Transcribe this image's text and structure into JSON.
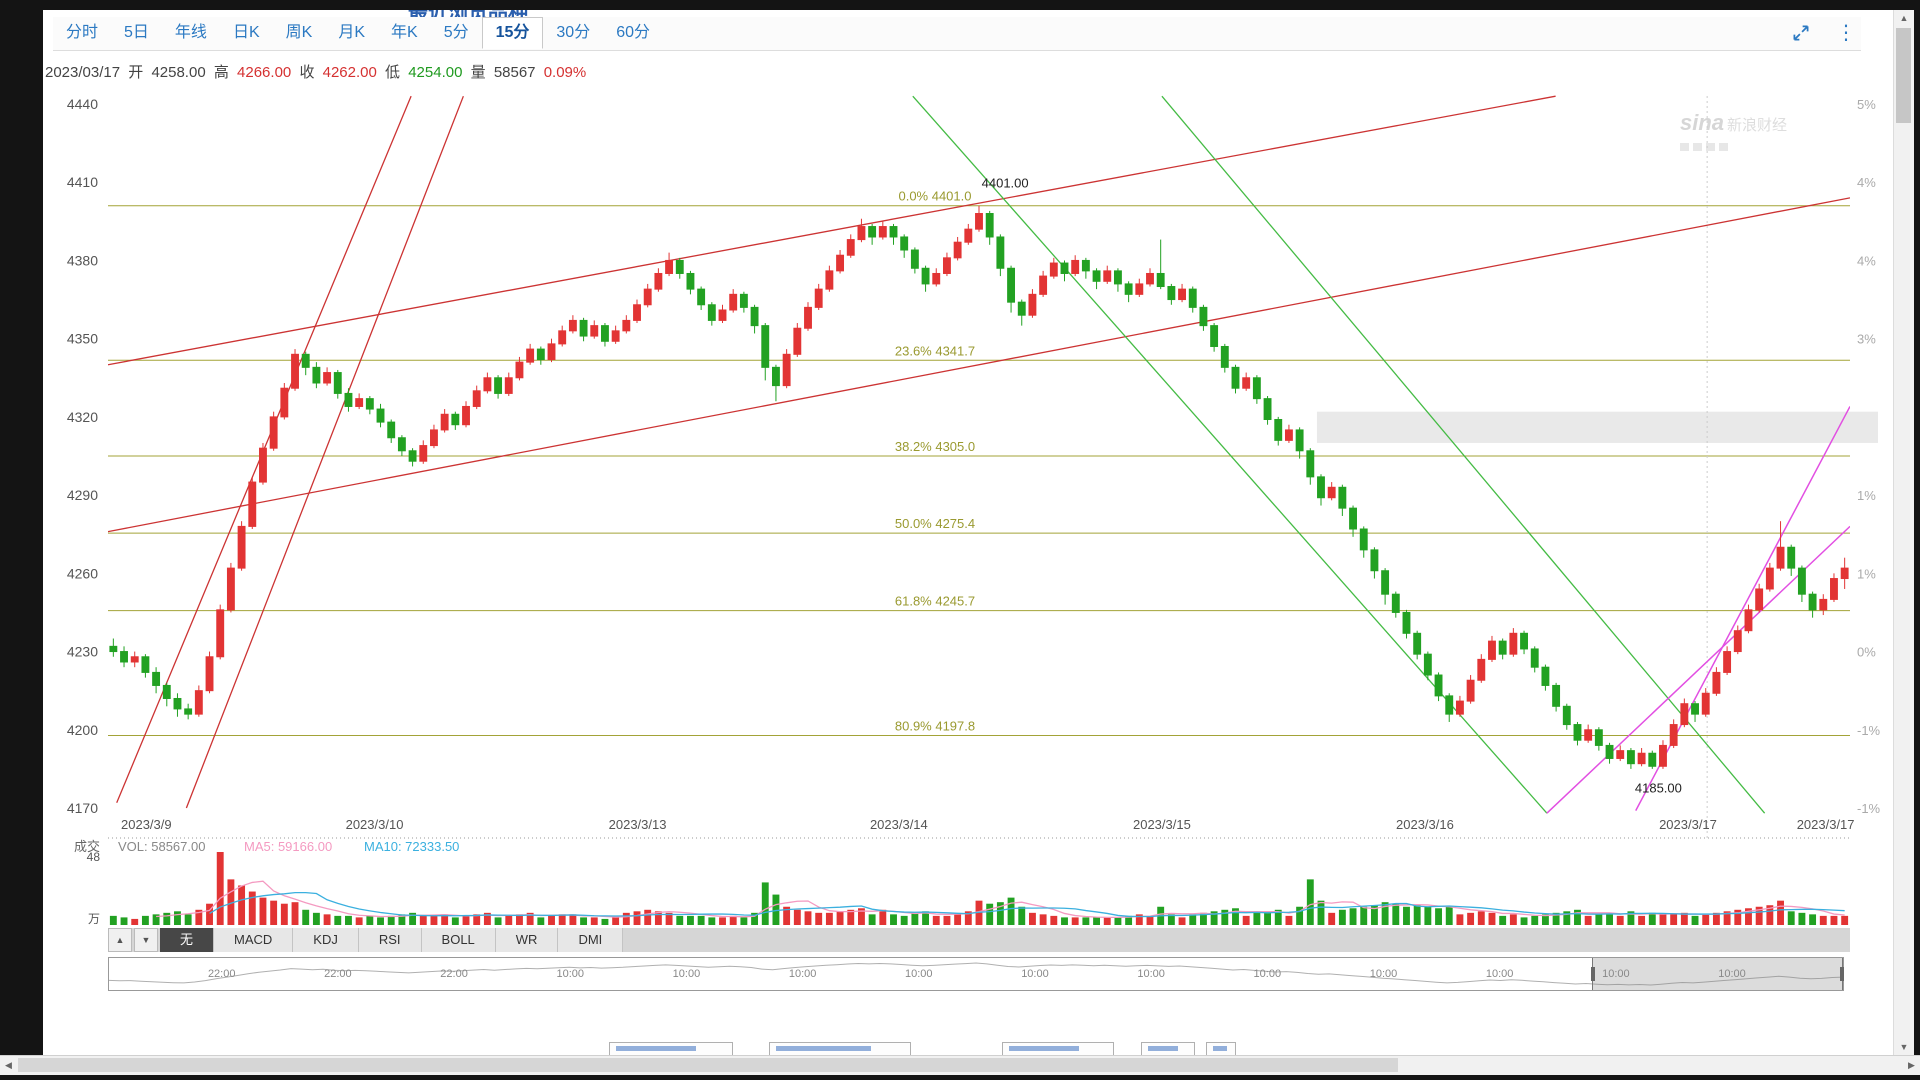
{
  "page": {
    "top_partial_title": "最近浏览品种",
    "watermark": {
      "logo": "sina",
      "name": "新浪财经"
    }
  },
  "toolbar": {
    "tabs": [
      "分时",
      "5日",
      "年线",
      "日K",
      "周K",
      "月K",
      "年K",
      "5分",
      "15分",
      "30分",
      "60分"
    ],
    "selected_tab": "15分",
    "collapse_icon": "collapse",
    "more_icon": "more"
  },
  "info_bar": {
    "date": "2023/03/17",
    "open_label": "开",
    "open": "4258.00",
    "high_label": "高",
    "high": "4266.00",
    "close_label": "收",
    "close": "4262.00",
    "low_label": "低",
    "low": "4254.00",
    "vol_label": "量",
    "vol": "58567",
    "change": "0.09%"
  },
  "chart_data": {
    "type": "candlestick",
    "interval": "15分",
    "ylim": [
      4170,
      4440
    ],
    "y_ticks": [
      4440,
      4410,
      4380,
      4350,
      4320,
      4290,
      4260,
      4230,
      4200,
      4170
    ],
    "right_axis_labels": [
      "5%",
      "4%",
      "4%",
      "3%",
      "2%",
      "1%",
      "1%",
      "0%",
      "-1%",
      "-1%"
    ],
    "x_labels": [
      {
        "label": "2023/3/9",
        "fx": 0.022
      },
      {
        "label": "2023/3/10",
        "fx": 0.153
      },
      {
        "label": "2023/3/13",
        "fx": 0.304
      },
      {
        "label": "2023/3/14",
        "fx": 0.454
      },
      {
        "label": "2023/3/15",
        "fx": 0.605
      },
      {
        "label": "2023/3/16",
        "fx": 0.756
      },
      {
        "label": "2023/3/17",
        "fx": 0.907
      },
      {
        "label": "2023/3/17",
        "fx": 0.986
      }
    ],
    "fib_levels": [
      {
        "label": "0.0% 4401.0",
        "price": 4401.0
      },
      {
        "label": "23.6% 4341.7",
        "price": 4341.7
      },
      {
        "label": "38.2% 4305.0",
        "price": 4305.0
      },
      {
        "label": "50.0% 4275.4",
        "price": 4275.4
      },
      {
        "label": "61.8% 4245.7",
        "price": 4245.7
      },
      {
        "label": "80.9% 4197.8",
        "price": 4197.8
      }
    ],
    "annotations": [
      {
        "text": "4401.00",
        "fx": 0.515,
        "price": 4408
      },
      {
        "text": "4185.00",
        "fx": 0.89,
        "price": 4176
      }
    ],
    "trend_lines": [
      {
        "color": "#cc3333",
        "w": 1.3,
        "fx1": 0.005,
        "p1": 4172,
        "fx2": 0.174,
        "p2": 4443
      },
      {
        "color": "#cc3333",
        "w": 1.3,
        "fx1": 0.045,
        "p1": 4170,
        "fx2": 0.204,
        "p2": 4443
      },
      {
        "color": "#cc3333",
        "w": 1.3,
        "fx1": 0.0,
        "p1": 4340,
        "fx2": 0.831,
        "p2": 4443
      },
      {
        "color": "#cc3333",
        "w": 1.3,
        "fx1": 0.0,
        "p1": 4276,
        "fx2": 1.0,
        "p2": 4404
      },
      {
        "color": "#44bb44",
        "w": 1.3,
        "fx1": 0.462,
        "p1": 4443,
        "fx2": 0.826,
        "p2": 4168
      },
      {
        "color": "#44bb44",
        "w": 1.3,
        "fx1": 0.605,
        "p1": 4443,
        "fx2": 0.951,
        "p2": 4168
      },
      {
        "color": "#e24fe2",
        "w": 1.5,
        "fx1": 0.826,
        "p1": 4168,
        "fx2": 1.0,
        "p2": 4278
      },
      {
        "color": "#e24fe2",
        "w": 1.5,
        "fx1": 0.877,
        "p1": 4169,
        "fx2": 1.0,
        "p2": 4324
      }
    ],
    "highlight_band": {
      "fx1": 0.694,
      "fx2": 1.0,
      "p1": 4322,
      "p2": 4310
    },
    "separator_fx": 0.918,
    "colors": {
      "up": "#e23434",
      "down": "#22a122",
      "fib": "#a3a337",
      "ma5": "#f49ac1",
      "ma10": "#3bb0df"
    },
    "volume": {
      "title": "成交",
      "vol_text": "VOL: 58567.00",
      "ma5_text": "MA5: 59166.00",
      "ma10_text": "MA10: 72333.50",
      "scale_max": 48,
      "max_label": "48",
      "unit": "万"
    },
    "candles": [
      [
        4232,
        4235,
        4228,
        4230,
        6
      ],
      [
        4230,
        4232,
        4224,
        4226,
        5
      ],
      [
        4226,
        4230,
        4224,
        4228,
        4
      ],
      [
        4228,
        4229,
        4220,
        4222,
        6
      ],
      [
        4222,
        4224,
        4214,
        4217,
        7
      ],
      [
        4217,
        4218,
        4209,
        4212,
        8
      ],
      [
        4212,
        4214,
        4205,
        4208,
        9
      ],
      [
        4208,
        4210,
        4204,
        4206,
        7
      ],
      [
        4206,
        4217,
        4205,
        4215,
        10
      ],
      [
        4215,
        4230,
        4214,
        4228,
        14
      ],
      [
        4228,
        4248,
        4227,
        4246,
        48
      ],
      [
        4246,
        4264,
        4245,
        4262,
        30
      ],
      [
        4262,
        4280,
        4261,
        4278,
        26
      ],
      [
        4278,
        4297,
        4277,
        4295,
        22
      ],
      [
        4295,
        4310,
        4294,
        4308,
        18
      ],
      [
        4308,
        4322,
        4307,
        4320,
        16
      ],
      [
        4320,
        4333,
        4319,
        4331,
        14
      ],
      [
        4331,
        4346,
        4330,
        4344,
        15
      ],
      [
        4344,
        4345,
        4336,
        4339,
        10
      ],
      [
        4339,
        4341,
        4331,
        4333,
        8
      ],
      [
        4333,
        4339,
        4332,
        4337,
        7
      ],
      [
        4337,
        4338,
        4327,
        4329,
        6
      ],
      [
        4329,
        4331,
        4322,
        4324,
        6
      ],
      [
        4324,
        4329,
        4323,
        4327,
        5
      ],
      [
        4327,
        4328,
        4321,
        4323,
        6
      ],
      [
        4323,
        4325,
        4316,
        4318,
        5
      ],
      [
        4318,
        4319,
        4310,
        4312,
        6
      ],
      [
        4312,
        4313,
        4305,
        4307,
        7
      ],
      [
        4307,
        4308,
        4301,
        4303,
        8
      ],
      [
        4303,
        4311,
        4302,
        4309,
        6
      ],
      [
        4309,
        4317,
        4308,
        4315,
        6
      ],
      [
        4315,
        4323,
        4314,
        4321,
        7
      ],
      [
        4321,
        4322,
        4315,
        4317,
        5
      ],
      [
        4317,
        4326,
        4316,
        4324,
        6
      ],
      [
        4324,
        4332,
        4323,
        4330,
        7
      ],
      [
        4330,
        4337,
        4329,
        4335,
        8
      ],
      [
        4335,
        4336,
        4327,
        4329,
        5
      ],
      [
        4329,
        4337,
        4328,
        4335,
        6
      ],
      [
        4335,
        4343,
        4334,
        4341,
        7
      ],
      [
        4341,
        4348,
        4340,
        4346,
        8
      ],
      [
        4346,
        4347,
        4340,
        4342,
        5
      ],
      [
        4342,
        4350,
        4341,
        4348,
        6
      ],
      [
        4348,
        4355,
        4347,
        4353,
        7
      ],
      [
        4353,
        4359,
        4352,
        4357,
        7
      ],
      [
        4357,
        4358,
        4349,
        4351,
        5
      ],
      [
        4351,
        4357,
        4350,
        4355,
        5
      ],
      [
        4355,
        4356,
        4347,
        4349,
        4
      ],
      [
        4349,
        4355,
        4348,
        4353,
        5
      ],
      [
        4353,
        4359,
        4352,
        4357,
        8
      ],
      [
        4357,
        4365,
        4356,
        4363,
        9
      ],
      [
        4363,
        4371,
        4362,
        4369,
        10
      ],
      [
        4369,
        4377,
        4368,
        4375,
        9
      ],
      [
        4375,
        4383,
        4374,
        4380,
        8
      ],
      [
        4380,
        4381,
        4373,
        4375,
        6
      ],
      [
        4375,
        4376,
        4367,
        4369,
        6
      ],
      [
        4369,
        4370,
        4361,
        4363,
        6
      ],
      [
        4363,
        4364,
        4355,
        4357,
        5
      ],
      [
        4357,
        4363,
        4356,
        4361,
        5
      ],
      [
        4361,
        4369,
        4360,
        4367,
        6
      ],
      [
        4367,
        4368,
        4360,
        4362,
        5
      ],
      [
        4362,
        4363,
        4352,
        4355,
        8
      ],
      [
        4355,
        4356,
        4334,
        4339,
        28
      ],
      [
        4339,
        4340,
        4326,
        4332,
        20
      ],
      [
        4332,
        4346,
        4331,
        4344,
        12
      ],
      [
        4344,
        4356,
        4343,
        4354,
        10
      ],
      [
        4354,
        4364,
        4353,
        4362,
        9
      ],
      [
        4362,
        4371,
        4361,
        4369,
        8
      ],
      [
        4369,
        4378,
        4368,
        4376,
        8
      ],
      [
        4376,
        4384,
        4375,
        4382,
        9
      ],
      [
        4382,
        4390,
        4381,
        4388,
        10
      ],
      [
        4388,
        4396,
        4387,
        4393,
        11
      ],
      [
        4393,
        4394,
        4386,
        4389,
        7
      ],
      [
        4389,
        4395,
        4388,
        4393,
        10
      ],
      [
        4393,
        4394,
        4386,
        4389,
        7
      ],
      [
        4389,
        4390,
        4381,
        4384,
        6
      ],
      [
        4384,
        4385,
        4375,
        4377,
        8
      ],
      [
        4377,
        4378,
        4368,
        4371,
        9
      ],
      [
        4371,
        4377,
        4370,
        4375,
        6
      ],
      [
        4375,
        4383,
        4374,
        4381,
        6
      ],
      [
        4381,
        4389,
        4380,
        4387,
        7
      ],
      [
        4387,
        4394,
        4386,
        4392,
        9
      ],
      [
        4392,
        4401,
        4391,
        4398,
        16
      ],
      [
        4398,
        4399,
        4386,
        4389,
        14
      ],
      [
        4389,
        4390,
        4374,
        4377,
        15
      ],
      [
        4377,
        4378,
        4360,
        4364,
        18
      ],
      [
        4364,
        4365,
        4355,
        4359,
        12
      ],
      [
        4359,
        4369,
        4358,
        4367,
        8
      ],
      [
        4367,
        4376,
        4366,
        4374,
        7
      ],
      [
        4374,
        4381,
        4373,
        4379,
        6
      ],
      [
        4379,
        4380,
        4372,
        4375,
        5
      ],
      [
        4375,
        4382,
        4374,
        4380,
        5
      ],
      [
        4380,
        4381,
        4373,
        4376,
        5
      ],
      [
        4376,
        4377,
        4369,
        4372,
        5
      ],
      [
        4372,
        4378,
        4371,
        4376,
        5
      ],
      [
        4376,
        4377,
        4368,
        4371,
        5
      ],
      [
        4371,
        4372,
        4364,
        4367,
        6
      ],
      [
        4367,
        4373,
        4366,
        4371,
        7
      ],
      [
        4371,
        4377,
        4370,
        4375,
        6
      ],
      [
        4375,
        4388,
        4369,
        4370,
        12
      ],
      [
        4370,
        4371,
        4363,
        4365,
        7
      ],
      [
        4365,
        4371,
        4364,
        4369,
        5
      ],
      [
        4369,
        4370,
        4360,
        4362,
        7
      ],
      [
        4362,
        4363,
        4353,
        4355,
        8
      ],
      [
        4355,
        4356,
        4345,
        4347,
        9
      ],
      [
        4347,
        4348,
        4337,
        4339,
        10
      ],
      [
        4339,
        4340,
        4329,
        4331,
        11
      ],
      [
        4331,
        4337,
        4330,
        4335,
        6
      ],
      [
        4335,
        4336,
        4325,
        4327,
        8
      ],
      [
        4327,
        4328,
        4317,
        4319,
        9
      ],
      [
        4319,
        4320,
        4309,
        4311,
        10
      ],
      [
        4311,
        4317,
        4310,
        4315,
        6
      ],
      [
        4315,
        4316,
        4304,
        4307,
        12
      ],
      [
        4307,
        4308,
        4294,
        4297,
        30
      ],
      [
        4297,
        4298,
        4286,
        4289,
        16
      ],
      [
        4289,
        4295,
        4288,
        4293,
        8
      ],
      [
        4293,
        4294,
        4282,
        4285,
        10
      ],
      [
        4285,
        4286,
        4274,
        4277,
        11
      ],
      [
        4277,
        4278,
        4266,
        4269,
        12
      ],
      [
        4269,
        4270,
        4258,
        4261,
        13
      ],
      [
        4261,
        4262,
        4248,
        4252,
        15
      ],
      [
        4252,
        4253,
        4243,
        4245,
        14
      ],
      [
        4245,
        4246,
        4235,
        4237,
        12
      ],
      [
        4237,
        4238,
        4227,
        4229,
        13
      ],
      [
        4229,
        4230,
        4219,
        4221,
        12
      ],
      [
        4221,
        4222,
        4211,
        4213,
        11
      ],
      [
        4213,
        4214,
        4203,
        4206,
        12
      ],
      [
        4206,
        4213,
        4205,
        4211,
        7
      ],
      [
        4211,
        4221,
        4210,
        4219,
        8
      ],
      [
        4219,
        4229,
        4218,
        4227,
        9
      ],
      [
        4227,
        4236,
        4226,
        4234,
        8
      ],
      [
        4234,
        4235,
        4227,
        4229,
        6
      ],
      [
        4229,
        4239,
        4228,
        4237,
        7
      ],
      [
        4237,
        4238,
        4229,
        4231,
        5
      ],
      [
        4231,
        4232,
        4222,
        4224,
        6
      ],
      [
        4224,
        4225,
        4215,
        4217,
        7
      ],
      [
        4217,
        4218,
        4207,
        4209,
        8
      ],
      [
        4209,
        4210,
        4200,
        4202,
        9
      ],
      [
        4202,
        4203,
        4194,
        4196,
        10
      ],
      [
        4196,
        4202,
        4195,
        4200,
        6
      ],
      [
        4200,
        4201,
        4192,
        4194,
        7
      ],
      [
        4194,
        4195,
        4187,
        4189,
        8
      ],
      [
        4189,
        4194,
        4188,
        4192,
        6
      ],
      [
        4192,
        4193,
        4185,
        4187,
        9
      ],
      [
        4187,
        4193,
        4186,
        4191,
        6
      ],
      [
        4191,
        4192,
        4185,
        4186,
        8
      ],
      [
        4186,
        4196,
        4185,
        4194,
        7
      ],
      [
        4194,
        4204,
        4193,
        4202,
        7
      ],
      [
        4202,
        4212,
        4201,
        4210,
        8
      ],
      [
        4210,
        4211,
        4203,
        4206,
        6
      ],
      [
        4206,
        4216,
        4205,
        4214,
        7
      ],
      [
        4214,
        4224,
        4213,
        4222,
        8
      ],
      [
        4222,
        4232,
        4221,
        4230,
        9
      ],
      [
        4230,
        4240,
        4229,
        4238,
        10
      ],
      [
        4238,
        4248,
        4237,
        4246,
        11
      ],
      [
        4246,
        4256,
        4245,
        4254,
        12
      ],
      [
        4254,
        4264,
        4253,
        4262,
        13
      ],
      [
        4262,
        4280,
        4261,
        4270,
        16
      ],
      [
        4270,
        4271,
        4259,
        4262,
        9
      ],
      [
        4262,
        4263,
        4249,
        4252,
        8
      ],
      [
        4252,
        4253,
        4243,
        4246,
        7
      ],
      [
        4246,
        4252,
        4244,
        4250,
        6
      ],
      [
        4250,
        4260,
        4249,
        4258,
        6
      ],
      [
        4258,
        4266,
        4254,
        4262,
        6
      ]
    ]
  },
  "indicator_bar": {
    "up_arrow": "▲",
    "down_arrow": "▼",
    "tabs": [
      "无",
      "MACD",
      "KDJ",
      "RSI",
      "BOLL",
      "WR",
      "DMI"
    ],
    "selected": "无"
  },
  "navigator": {
    "times": [
      "22:00",
      "22:00",
      "22:00",
      "10:00",
      "10:00",
      "10:00",
      "10:00",
      "10:00",
      "10:00",
      "10:00",
      "10:00",
      "10:00",
      "10:00",
      "10:00"
    ],
    "time_fx": [
      0.065,
      0.132,
      0.199,
      0.266,
      0.333,
      0.4,
      0.467,
      0.534,
      0.601,
      0.668,
      0.735,
      0.802,
      0.869,
      0.936
    ],
    "window": {
      "fx1": 0.855,
      "fx2": 1.0
    }
  },
  "scrollbars": {
    "up": "▲",
    "down": "▼",
    "left": "◀",
    "right": "▶"
  }
}
